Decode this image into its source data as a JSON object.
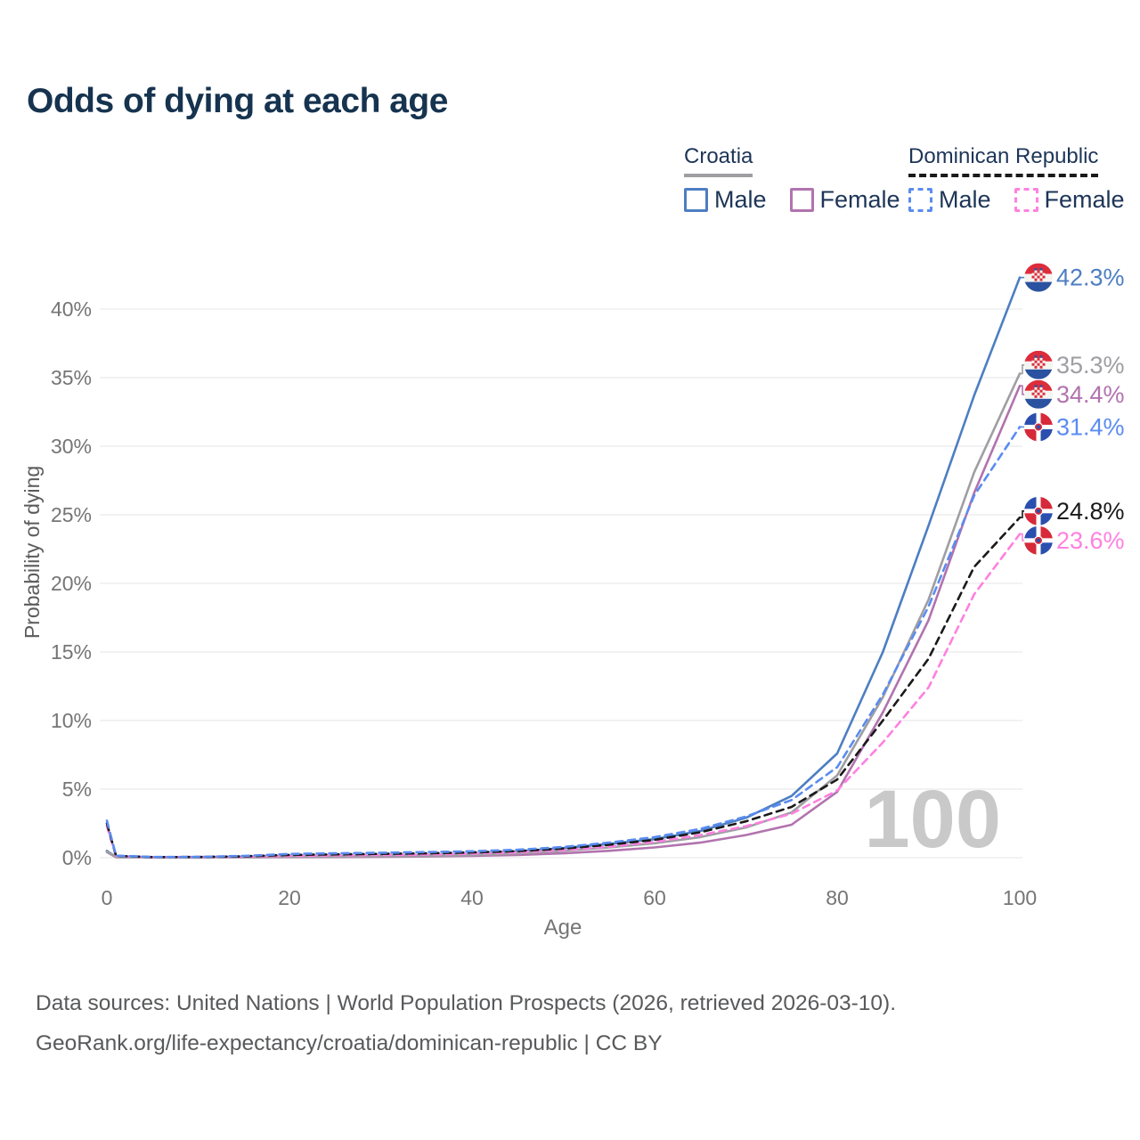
{
  "title": "Odds of dying at each age",
  "legend": {
    "groups": [
      {
        "name": "Croatia",
        "line_style": "solid",
        "line_color": "#9e9ea3",
        "items": [
          {
            "label": "Male",
            "color": "#4d7ec2"
          },
          {
            "label": "Female",
            "color": "#b173ae"
          }
        ]
      },
      {
        "name": "Dominican Republic",
        "line_style": "dashed",
        "line_color": "#1a1a1a",
        "items": [
          {
            "label": "Male",
            "color": "#5a8cf0"
          },
          {
            "label": "Female",
            "color": "#ff80e0"
          }
        ]
      }
    ]
  },
  "chart_data": {
    "type": "line",
    "title": "Odds of dying at each age",
    "xlabel": "Age",
    "ylabel": "Probability of dying",
    "xlim": [
      0,
      100
    ],
    "ylim_percent": [
      0,
      40
    ],
    "grid": "horizontal",
    "legend_position": "top-right",
    "watermark": "100",
    "x_ticks": [
      "0",
      "20",
      "40",
      "60",
      "80",
      "100"
    ],
    "y_ticks": [
      "0%",
      "5%",
      "10%",
      "15%",
      "20%",
      "25%",
      "30%",
      "35%",
      "40%"
    ],
    "x": [
      0,
      1,
      5,
      10,
      15,
      20,
      25,
      30,
      35,
      40,
      45,
      50,
      55,
      60,
      65,
      70,
      75,
      80,
      85,
      90,
      95,
      100
    ],
    "series": [
      {
        "name": "Croatia Male",
        "country": "Croatia",
        "sex": "male",
        "style": "solid",
        "color": "#4d7ec2",
        "end_label": "42.3%",
        "values_percent": [
          0.5,
          0.04,
          0.02,
          0.02,
          0.05,
          0.09,
          0.11,
          0.14,
          0.19,
          0.28,
          0.45,
          0.7,
          1.0,
          1.35,
          1.95,
          2.9,
          4.5,
          7.6,
          15.0,
          24.2,
          33.7,
          42.3
        ]
      },
      {
        "name": "Croatia Female",
        "country": "Croatia",
        "sex": "female",
        "style": "solid",
        "color": "#b173ae",
        "end_label": "34.4%",
        "values_percent": [
          0.4,
          0.03,
          0.012,
          0.012,
          0.02,
          0.03,
          0.045,
          0.06,
          0.09,
          0.13,
          0.2,
          0.32,
          0.5,
          0.75,
          1.1,
          1.65,
          2.4,
          4.8,
          10.6,
          17.3,
          26.6,
          34.4
        ]
      },
      {
        "name": "Croatia Both sexes",
        "country": "Croatia",
        "sex": "both",
        "style": "solid",
        "color": "#9e9ea3",
        "end_label": "35.3%",
        "values_percent": [
          0.45,
          0.035,
          0.015,
          0.015,
          0.035,
          0.06,
          0.08,
          0.1,
          0.14,
          0.2,
          0.32,
          0.5,
          0.75,
          1.05,
          1.5,
          2.2,
          3.3,
          6.0,
          11.7,
          18.8,
          28.1,
          35.3
        ]
      },
      {
        "name": "Dominican Republic Female",
        "country": "Dominican Republic",
        "sex": "female",
        "style": "dashed",
        "color": "#ff80e0",
        "end_label": "23.6%",
        "values_percent": [
          2.3,
          0.12,
          0.04,
          0.05,
          0.08,
          0.13,
          0.16,
          0.19,
          0.23,
          0.29,
          0.39,
          0.56,
          0.8,
          1.15,
          1.65,
          2.3,
          3.2,
          4.9,
          8.4,
          12.4,
          19.2,
          23.6
        ]
      },
      {
        "name": "Dominican Republic Both sexes",
        "country": "Dominican Republic",
        "sex": "both",
        "style": "dashed",
        "color": "#1a1a1a",
        "end_label": "24.8%",
        "values_percent": [
          2.5,
          0.13,
          0.045,
          0.055,
          0.1,
          0.2,
          0.24,
          0.28,
          0.32,
          0.38,
          0.48,
          0.66,
          0.94,
          1.3,
          1.85,
          2.65,
          3.7,
          5.7,
          10.0,
          14.5,
          21.2,
          24.8
        ]
      },
      {
        "name": "Dominican Republic Male",
        "country": "Dominican Republic",
        "sex": "male",
        "style": "dashed",
        "color": "#5a8cf0",
        "end_label": "31.4%",
        "values_percent": [
          2.7,
          0.15,
          0.05,
          0.06,
          0.13,
          0.27,
          0.32,
          0.36,
          0.41,
          0.47,
          0.58,
          0.78,
          1.1,
          1.5,
          2.1,
          3.0,
          4.2,
          6.6,
          11.9,
          18.3,
          26.4,
          31.4
        ]
      }
    ]
  },
  "flags": {
    "croatia": {
      "red": "#dd2c3b",
      "white": "#f4f5f0",
      "blue": "#2a52a0"
    },
    "dominican_republic": {
      "blue": "#2a4fae",
      "red": "#d6293a",
      "white": "#ffffff"
    }
  },
  "footer": {
    "line1": "Data sources: United Nations | World Population Prospects (2026, retrieved 2026-03-10).",
    "line2": "GeoRank.org/life-expectancy/croatia/dominican-republic | CC BY"
  }
}
